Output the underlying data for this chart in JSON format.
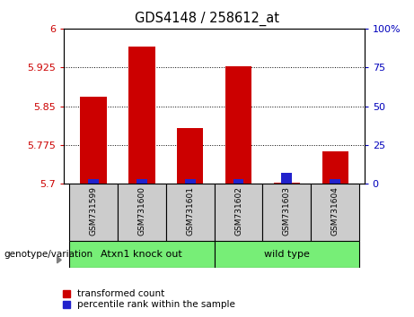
{
  "title": "GDS4148 / 258612_at",
  "samples": [
    "GSM731599",
    "GSM731600",
    "GSM731601",
    "GSM731602",
    "GSM731603",
    "GSM731604"
  ],
  "transformed_counts": [
    5.868,
    5.965,
    5.808,
    5.927,
    5.703,
    5.762
  ],
  "percentile_ranks": [
    3,
    3,
    3,
    3,
    7,
    3
  ],
  "base_value": 5.7,
  "ylim_left": [
    5.7,
    6.0
  ],
  "ylim_right": [
    0,
    100
  ],
  "yticks_left": [
    5.7,
    5.775,
    5.85,
    5.925,
    6.0
  ],
  "yticks_right": [
    0,
    25,
    50,
    75,
    100
  ],
  "ytick_labels_left": [
    "5.7",
    "5.775",
    "5.85",
    "5.925",
    "6"
  ],
  "ytick_labels_right": [
    "0",
    "25",
    "50",
    "75",
    "100%"
  ],
  "bar_width": 0.55,
  "blue_bar_width": 0.22,
  "red_color": "#CC0000",
  "blue_color": "#2222CC",
  "left_tick_color": "#CC0000",
  "right_tick_color": "#0000BB",
  "legend_red_label": "transformed count",
  "legend_blue_label": "percentile rank within the sample",
  "genotype_label": "genotype/variation",
  "group1_label": "Atxn1 knock out",
  "group2_label": "wild type",
  "background_plot": "#FFFFFF",
  "background_xtick": "#CCCCCC",
  "background_group": "#77EE77"
}
